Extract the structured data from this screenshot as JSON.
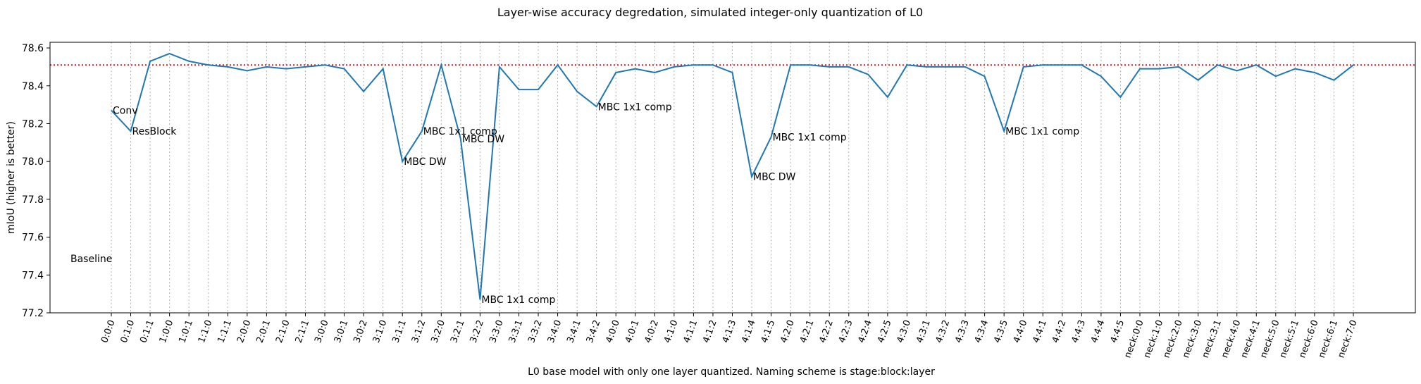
{
  "chart_data": {
    "type": "line",
    "title": "Layer-wise accuracy degredation, simulated integer-only quantization of L0",
    "xlabel": "L0 base model with only one layer quantized. Naming scheme is stage:block:layer",
    "ylabel": "mIoU (higher is better)",
    "ylim": [
      77.2,
      78.63
    ],
    "yticks": [
      "77.2",
      "77.4",
      "77.6",
      "77.8",
      "78.0",
      "78.2",
      "78.4",
      "78.6"
    ],
    "grid": "vertical dotted",
    "baseline": {
      "label": "Baseline",
      "value": 78.51,
      "color": "#e41a1c"
    },
    "line_color": "#1f77b4",
    "categories": [
      "0:0:0",
      "0:1:0",
      "0:1:1",
      "1:0:0",
      "1:0:1",
      "1:1:0",
      "1:1:1",
      "2:0:0",
      "2:0:1",
      "2:1:0",
      "2:1:1",
      "3:0:0",
      "3:0:1",
      "3:0:2",
      "3:1:0",
      "3:1:1",
      "3:1:2",
      "3:2:0",
      "3:2:1",
      "3:2:2",
      "3:3:0",
      "3:3:1",
      "3:3:2",
      "3:4:0",
      "3:4:1",
      "3:4:2",
      "4:0:0",
      "4:0:1",
      "4:0:2",
      "4:1:0",
      "4:1:1",
      "4:1:2",
      "4:1:3",
      "4:1:4",
      "4:1:5",
      "4:2:0",
      "4:2:1",
      "4:2:2",
      "4:2:3",
      "4:2:4",
      "4:2:5",
      "4:3:0",
      "4:3:1",
      "4:3:2",
      "4:3:3",
      "4:3:4",
      "4:3:5",
      "4:4:0",
      "4:4:1",
      "4:4:2",
      "4:4:3",
      "4:4:4",
      "4:4:5",
      "neck:0:0",
      "neck:1:0",
      "neck:2:0",
      "neck:3:0",
      "neck:3:1",
      "neck:4:0",
      "neck:4:1",
      "neck:5:0",
      "neck:5:1",
      "neck:6:0",
      "neck:6:1",
      "neck:7:0"
    ],
    "values": [
      78.27,
      78.16,
      78.53,
      78.57,
      78.53,
      78.51,
      78.5,
      78.48,
      78.5,
      78.49,
      78.5,
      78.51,
      78.49,
      78.37,
      78.49,
      78.0,
      78.16,
      78.51,
      78.12,
      77.27,
      78.5,
      78.38,
      78.38,
      78.51,
      78.37,
      78.29,
      78.47,
      78.49,
      78.47,
      78.5,
      78.51,
      78.51,
      78.47,
      77.92,
      78.13,
      78.51,
      78.51,
      78.5,
      78.5,
      78.46,
      78.34,
      78.51,
      78.5,
      78.5,
      78.5,
      78.45,
      78.16,
      78.5,
      78.51,
      78.51,
      78.51,
      78.45,
      78.34,
      78.49,
      78.49,
      78.5,
      78.43,
      78.51,
      78.48,
      78.51,
      78.45,
      78.49,
      78.47,
      78.43,
      78.51
    ],
    "annotations": [
      {
        "text": "Conv",
        "category": "0:0:0",
        "value": 78.27
      },
      {
        "text": "ResBlock",
        "category": "0:1:0",
        "value": 78.16
      },
      {
        "text": "MBC DW",
        "category": "3:1:1",
        "value": 78.0
      },
      {
        "text": "MBC 1x1 comp",
        "category": "3:1:2",
        "value": 78.16
      },
      {
        "text": "MBC DW",
        "category": "3:2:1",
        "value": 78.12
      },
      {
        "text": "MBC 1x1 comp",
        "category": "3:2:2",
        "value": 77.27
      },
      {
        "text": "MBC 1x1 comp",
        "category": "3:4:2",
        "value": 78.29
      },
      {
        "text": "MBC DW",
        "category": "4:1:4",
        "value": 77.92
      },
      {
        "text": "MBC 1x1 comp",
        "category": "4:1:5",
        "value": 78.13
      },
      {
        "text": "MBC 1x1 comp",
        "category": "4:3:5",
        "value": 78.16
      }
    ]
  }
}
